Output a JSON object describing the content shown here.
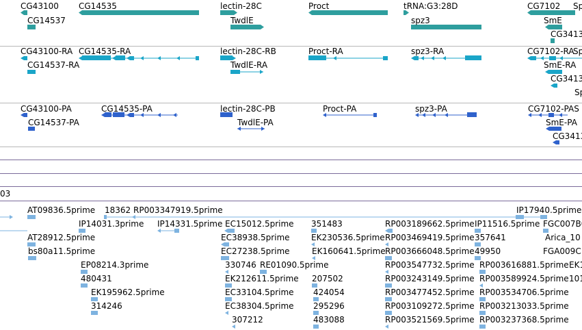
{
  "genes": {
    "labels": [
      "CG43100",
      "CG14535",
      "lectin-28C",
      "Proct",
      "tRNA:G3:28D",
      "CG7102",
      "Sp",
      "CG14537",
      "TwdlE",
      "spz3",
      "SmE",
      "CG3413"
    ],
    "color": "#2e9e9e"
  },
  "transcripts_ra": {
    "labels": [
      "CG43100-RA",
      "CG14535-RA",
      "lectin-28C-RB",
      "Proct-RA",
      "spz3-RA",
      "CG7102-RA",
      "Sp",
      "CG14537-RA",
      "TwdlE-RA",
      "SmE-RA",
      "CG3413",
      "Sp"
    ],
    "color": "#1aa5c8"
  },
  "transcripts_pa": {
    "labels": [
      "CG43100-PA",
      "CG14535-PA",
      "lectin-28C-PB",
      "Proct-PA",
      "spz3-PA",
      "CG7102-PAS",
      "CG14537-PA",
      "TwdlE-PA",
      "SmE-PA",
      "CG3413"
    ],
    "color": "#2f62cc"
  },
  "ruler_fragment": "03",
  "ests": {
    "color": "#7eb3e0",
    "labels": [
      "AT09836.5prime",
      "18362",
      "RP003347919.5prime",
      "IP17940.5prime",
      "FGC007B0",
      "IP14031.3prime",
      "IP14331.5prime",
      "EC15012.5prime",
      "351483",
      "RP003189662.5prime",
      "IP11516.5prime",
      "AT28912.5prime",
      "EC38938.5prime",
      "EK230536.5prime",
      "RP003469419.5prime",
      "357641",
      "Arica_10",
      "bs80a11.5prime",
      "EC27238.5prime",
      "EK160641.5prime",
      "RP003666048.5prime",
      "49950",
      "FGA009C",
      "EP08214.3prime",
      "330746",
      "RE01090.5prime",
      "RP003547732.5prime",
      "RP003616881.5prime",
      "EK1",
      "480431",
      "EK212611.5prime",
      "207502",
      "RP003243149.5prime",
      "RP003589924.5prime",
      "101",
      "EK195962.5prime",
      "EC33104.5prime",
      "424054",
      "RP003477452.5prime",
      "RP003534706.5prime",
      "314246",
      "EC38304.5prime",
      "295296",
      "RP003109272.5prime",
      "RP003213033.5prime",
      "307212",
      "483088",
      "RP003521569.5prime",
      "RP003237368.5prime"
    ]
  }
}
